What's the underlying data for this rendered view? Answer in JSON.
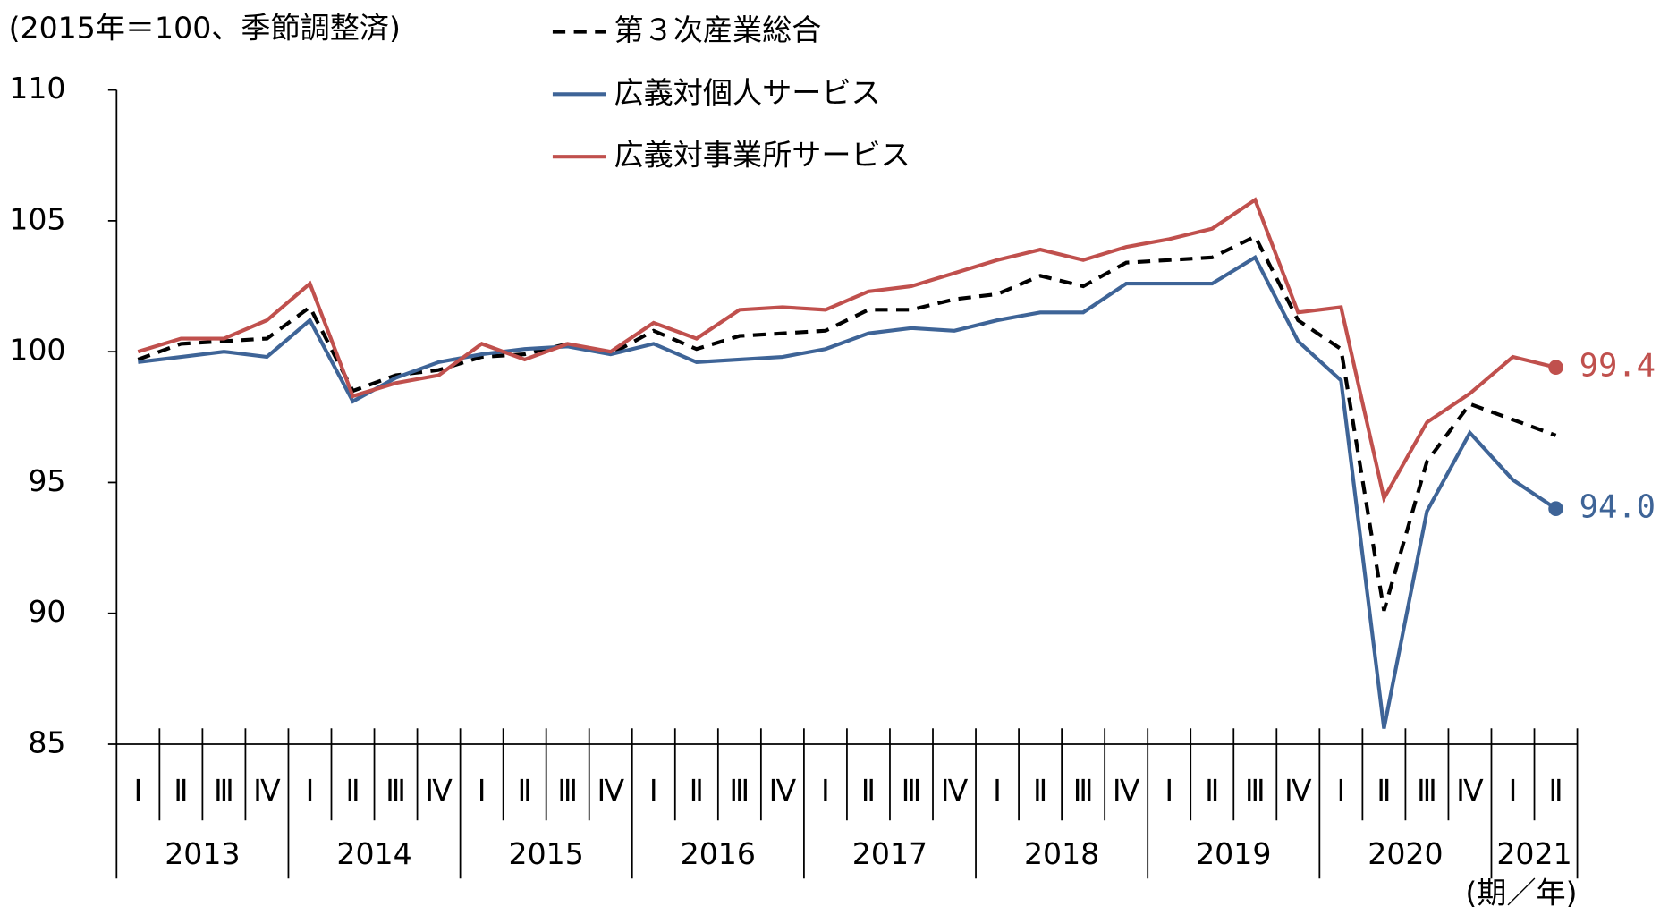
{
  "chart_data": {
    "type": "line",
    "y_axis_label": "(2015年＝100、季節調整済)",
    "x_axis_label": "(期／年)",
    "categories": [
      "Ⅰ",
      "Ⅱ",
      "Ⅲ",
      "Ⅳ",
      "Ⅰ",
      "Ⅱ",
      "Ⅲ",
      "Ⅳ",
      "Ⅰ",
      "Ⅱ",
      "Ⅲ",
      "Ⅳ",
      "Ⅰ",
      "Ⅱ",
      "Ⅲ",
      "Ⅳ",
      "Ⅰ",
      "Ⅱ",
      "Ⅲ",
      "Ⅳ",
      "Ⅰ",
      "Ⅱ",
      "Ⅲ",
      "Ⅳ",
      "Ⅰ",
      "Ⅱ",
      "Ⅲ",
      "Ⅳ",
      "Ⅰ",
      "Ⅱ",
      "Ⅲ",
      "Ⅳ",
      "Ⅰ",
      "Ⅱ"
    ],
    "years": [
      "2013",
      "2014",
      "2015",
      "2016",
      "2017",
      "2018",
      "2019",
      "2020",
      "2021"
    ],
    "ylim": [
      85,
      110
    ],
    "yticks": [
      85,
      90,
      95,
      100,
      105,
      110
    ],
    "grid": false,
    "series": [
      {
        "name": "第３次産業総合",
        "color": "#000000",
        "dashed": true,
        "values": [
          99.7,
          100.3,
          100.4,
          100.5,
          101.7,
          98.5,
          99.1,
          99.3,
          99.8,
          99.9,
          100.3,
          99.9,
          100.8,
          100.1,
          100.6,
          100.7,
          100.8,
          101.6,
          101.6,
          102.0,
          102.2,
          102.9,
          102.5,
          103.4,
          103.5,
          103.6,
          104.4,
          101.2,
          100.1,
          90.1,
          95.8,
          98.0,
          97.4,
          96.8
        ]
      },
      {
        "name": "広義対個人サービス",
        "color": "#3e6497",
        "dashed": false,
        "values": [
          99.6,
          99.8,
          100.0,
          99.8,
          101.2,
          98.1,
          99.0,
          99.6,
          99.9,
          100.1,
          100.2,
          99.9,
          100.3,
          99.6,
          99.7,
          99.8,
          100.1,
          100.7,
          100.9,
          100.8,
          101.2,
          101.5,
          101.5,
          102.6,
          102.6,
          102.6,
          103.6,
          100.4,
          98.9,
          85.6,
          93.9,
          96.9,
          95.1,
          94.0
        ],
        "value_labels": [
          null,
          null,
          null,
          null,
          null,
          null,
          null,
          null,
          null,
          null,
          null,
          null,
          null,
          null,
          null,
          null,
          null,
          null,
          null,
          null,
          null,
          null,
          null,
          null,
          null,
          null,
          null,
          null,
          null,
          null,
          null,
          null,
          null,
          "94.0"
        ]
      },
      {
        "name": "広義対事業所サービス",
        "color": "#c0504d",
        "dashed": false,
        "values": [
          100.0,
          100.5,
          100.5,
          101.2,
          102.6,
          98.3,
          98.8,
          99.1,
          100.3,
          99.7,
          100.3,
          100.0,
          101.1,
          100.5,
          101.6,
          101.7,
          101.6,
          102.3,
          102.5,
          103.0,
          103.5,
          103.9,
          103.5,
          104.0,
          104.3,
          104.7,
          105.8,
          101.5,
          101.7,
          94.4,
          97.3,
          98.4,
          99.8,
          99.4
        ],
        "value_labels": [
          null,
          null,
          null,
          null,
          null,
          null,
          null,
          null,
          null,
          null,
          null,
          null,
          null,
          null,
          null,
          null,
          null,
          null,
          null,
          null,
          null,
          null,
          null,
          null,
          null,
          null,
          null,
          null,
          null,
          null,
          null,
          null,
          null,
          "99.4"
        ]
      }
    ]
  }
}
